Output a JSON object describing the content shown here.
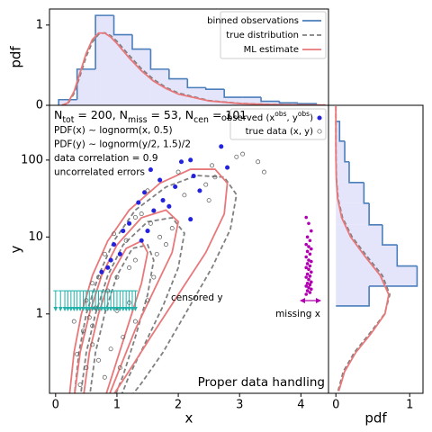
{
  "chart_data": [
    {
      "type": "histogram",
      "ylabel": "pdf",
      "xlim": [
        -0.1,
        4.45
      ],
      "ylim": [
        0,
        1.2
      ],
      "yticks": [
        0,
        1
      ],
      "legend": "upper right",
      "histogram": {
        "name": "binned observations",
        "color": "#4a7ebb",
        "fill": "#e4e4fa",
        "bins": [
          0.05,
          0.35,
          0.65,
          0.95,
          1.25,
          1.55,
          1.85,
          2.15,
          2.45,
          2.75,
          3.05,
          3.35,
          3.65,
          3.95,
          4.25
        ],
        "counts": [
          0.07,
          0.45,
          1.12,
          0.88,
          0.7,
          0.45,
          0.33,
          0.22,
          0.2,
          0.1,
          0.1,
          0.05,
          0.03,
          0.02
        ]
      },
      "series": [
        {
          "name": "true distribution",
          "color": "#808080",
          "dashed": true,
          "x": [
            0.1,
            0.2,
            0.3,
            0.4,
            0.5,
            0.6,
            0.7,
            0.8,
            0.9,
            1.0,
            1.2,
            1.4,
            1.6,
            1.8,
            2.0,
            2.5,
            3.0,
            3.5,
            4.0,
            4.4
          ],
          "values": [
            0,
            0.022,
            0.146,
            0.372,
            0.61,
            0.789,
            0.885,
            0.903,
            0.867,
            0.798,
            0.622,
            0.455,
            0.321,
            0.222,
            0.153,
            0.059,
            0.024,
            0.0099,
            0.0043,
            0.002
          ]
        },
        {
          "name": "ML estimate",
          "color": "#e8787a",
          "dashed": false,
          "x": [
            0.1,
            0.2,
            0.3,
            0.4,
            0.5,
            0.6,
            0.7,
            0.8,
            0.9,
            1.0,
            1.2,
            1.4,
            1.6,
            1.8,
            2.0,
            2.5,
            3.0,
            3.5,
            4.0,
            4.4
          ],
          "values": [
            0,
            0.03,
            0.17,
            0.41,
            0.65,
            0.82,
            0.9,
            0.9,
            0.85,
            0.77,
            0.59,
            0.43,
            0.3,
            0.21,
            0.14,
            0.055,
            0.022,
            0.009,
            0.004,
            0.002
          ]
        }
      ]
    },
    {
      "type": "scatter",
      "xlabel": "x",
      "ylabel": "y",
      "xlim": [
        -0.1,
        4.45
      ],
      "ylim": [
        0.093,
        515
      ],
      "ylog": true,
      "xticks": [
        0,
        1,
        2,
        3,
        4
      ],
      "yticks": [
        1,
        10,
        100
      ],
      "legend": "upper right",
      "stats_text": [
        {
          "text": "N"
        },
        {
          "sub": "tot"
        },
        {
          "text": " = 200, N"
        },
        {
          "sub": "miss"
        },
        {
          "text": " = 53, N"
        },
        {
          "sub": "cen"
        },
        {
          "text": " = 101"
        }
      ],
      "notes": [
        "PDF(x) ∼ lognorm(x, 0.5)",
        "PDF(y) ∼ lognorm(y/2, 1.5)/2",
        "data correlation = 0.9",
        "uncorrelated errors"
      ],
      "panel_label": "Proper data handling",
      "series": [
        {
          "name_parts": [
            {
              "text": "observed (x"
            },
            {
              "sup": "obs"
            },
            {
              "text": ", y"
            },
            {
              "sup": "obs"
            },
            {
              "text": ")"
            }
          ],
          "color": "#2323dd",
          "filled": true,
          "x": [
            2.7,
            2.2,
            2.05,
            1.55,
            2.8,
            2.25,
            1.7,
            1.95,
            2.35,
            1.45,
            1.75,
            1.85,
            1.6,
            1.35,
            1.2,
            1.1,
            0.95,
            1.5,
            0.9,
            0.85,
            1.05,
            0.75,
            1.4,
            2.2
          ],
          "values": [
            150,
            100,
            95,
            75,
            80,
            62,
            55,
            45,
            40,
            38,
            30,
            25,
            22,
            28,
            15,
            12,
            8,
            12,
            5,
            4,
            6,
            3.5,
            9,
            17
          ]
        },
        {
          "name": "true data (x, y)",
          "color": "#555555",
          "filled": false,
          "x": [
            3.05,
            3.3,
            2.95,
            2.55,
            3.4,
            2.6,
            2.45,
            2.1,
            1.5,
            1.4,
            1.3,
            1.55,
            1.15,
            0.95,
            0.8,
            0.7,
            0.6,
            1.8,
            1.65,
            1.3,
            1.2,
            1.0,
            0.5,
            0.55,
            0.45,
            0.6,
            0.7,
            0.9,
            1.1,
            1.3,
            1.5,
            0.35,
            0.5,
            0.4,
            0.8,
            1.0,
            1.2,
            0.3,
            0.65,
            1.6,
            1.9,
            2.0,
            2.5,
            1.7,
            0.85,
            0.6,
            1.05
          ],
          "values": [
            120,
            95,
            110,
            85,
            70,
            60,
            48,
            35,
            40,
            20,
            18,
            15,
            9,
            11,
            6,
            3,
            2.5,
            8,
            6,
            5,
            4,
            3,
            1.5,
            0.9,
            0.6,
            0.4,
            0.25,
            0.35,
            0.5,
            0.8,
            1.5,
            0.3,
            0.2,
            0.12,
            0.15,
            1.1,
            1.4,
            0.8,
            1.2,
            3,
            13,
            70,
            30,
            10,
            2,
            0.7,
            0.2
          ]
        }
      ],
      "censored": {
        "label": "censored y",
        "color": "#20b2aa",
        "x": [
          0,
          0.08,
          0.15,
          0.2,
          0.25,
          0.3,
          0.35,
          0.4,
          0.45,
          0.5,
          0.55,
          0.6,
          0.65,
          0.7,
          0.75,
          0.8,
          0.85,
          0.9,
          0.95,
          1.0,
          1.05,
          1.1,
          1.15,
          1.2,
          1.25,
          1.3
        ],
        "values": [
          2,
          2,
          2,
          2,
          2,
          2,
          2,
          2,
          2,
          2,
          2,
          2,
          2,
          2,
          2,
          2,
          2,
          2,
          2,
          2,
          2,
          2,
          2,
          2,
          2,
          2
        ]
      },
      "missing": {
        "label": "missing x",
        "color": "#b000b0",
        "values": [
          18,
          15,
          12,
          10,
          9,
          8,
          7.5,
          7,
          6.5,
          6,
          5.5,
          5,
          4.8,
          4.5,
          4.2,
          4,
          3.8,
          3.5,
          3.3,
          3.1,
          3,
          2.8,
          2.6,
          2.5,
          2.4,
          2.3,
          2.2,
          2.1,
          2,
          1.9,
          1.8
        ]
      },
      "contours": [
        {
          "color": "#808080",
          "dashed": true,
          "x": [
            0.3,
            0.38,
            0.5,
            0.7,
            0.95,
            1.3,
            1.8,
            2.3,
            2.75,
            2.95,
            2.85,
            2.55,
            2.15,
            1.75,
            1.4,
            1.2
          ],
          "y": [
            0.079,
            0.316,
            1,
            3.16,
            8.9,
            22.4,
            44.7,
            63,
            60,
            35.5,
            12.6,
            4,
            1.12,
            0.316,
            0.126,
            0.079
          ]
        },
        {
          "color": "#808080",
          "dashed": true,
          "x": [
            0.4,
            0.5,
            0.65,
            0.85,
            1.1,
            1.5,
            1.9,
            2.1,
            2.0,
            1.75,
            1.45,
            1.2,
            1.05
          ],
          "y": [
            0.079,
            0.316,
            1,
            3.16,
            7.9,
            15.8,
            17.8,
            11.2,
            4,
            1.26,
            0.4,
            0.158,
            0.079
          ]
        },
        {
          "color": "#808080",
          "dashed": true,
          "x": [
            0.55,
            0.65,
            0.8,
            1.0,
            1.25,
            1.5,
            1.6,
            1.5,
            1.3,
            1.1,
            0.95
          ],
          "y": [
            0.079,
            0.316,
            1,
            3.16,
            7.1,
            7.9,
            5,
            1.78,
            0.5,
            0.158,
            0.079
          ]
        },
        {
          "color": "#e8787a",
          "dashed": false,
          "x": [
            0.22,
            0.3,
            0.42,
            0.6,
            0.85,
            1.2,
            1.7,
            2.2,
            2.6,
            2.8,
            2.75,
            2.45,
            2.0,
            1.55,
            1.15,
            0.9
          ],
          "y": [
            0.079,
            0.316,
            1,
            3.16,
            8.9,
            22.4,
            50,
            76,
            76,
            50,
            20,
            6.3,
            1.78,
            0.5,
            0.158,
            0.079
          ]
        },
        {
          "color": "#e8787a",
          "dashed": false,
          "x": [
            0.3,
            0.4,
            0.55,
            0.75,
            1.0,
            1.4,
            1.8,
            2.0,
            1.9,
            1.6,
            1.3,
            1.05,
            0.85
          ],
          "y": [
            0.079,
            0.316,
            1,
            3.16,
            7.9,
            17.8,
            22.4,
            15.8,
            6.3,
            2,
            0.63,
            0.2,
            0.079
          ]
        },
        {
          "color": "#e8787a",
          "dashed": false,
          "x": [
            0.45,
            0.55,
            0.7,
            0.9,
            1.15,
            1.4,
            1.5,
            1.4,
            1.2,
            1.0,
            0.8
          ],
          "y": [
            0.079,
            0.316,
            1,
            3.16,
            7.1,
            8.9,
            6.3,
            2.5,
            0.79,
            0.25,
            0.079
          ]
        }
      ]
    },
    {
      "type": "histogram",
      "orientation": "horizontal",
      "xlabel": "pdf",
      "xlim": [
        -0.1,
        1.18
      ],
      "xticks": [
        0,
        1
      ],
      "ylim": [
        0.093,
        515
      ],
      "ylog": true,
      "histogram": {
        "color": "#4a7ebb",
        "fill": "#e4e4fa",
        "bins": [
          1.27,
          2.3,
          4.2,
          7.9,
          14.4,
          27.5,
          51,
          95,
          176,
          318
        ],
        "counts": [
          0.45,
          1.1,
          0.83,
          0.63,
          0.45,
          0.38,
          0.18,
          0.12,
          0.05
        ]
      },
      "series": [
        {
          "color": "#808080",
          "dashed": true,
          "y": [
            0.1,
            0.178,
            0.316,
            0.562,
            1,
            1.78,
            3.16,
            5.62,
            10,
            17.8,
            31.6,
            56.2,
            100,
            178,
            316,
            501
          ],
          "values": [
            0.03,
            0.1,
            0.25,
            0.46,
            0.66,
            0.73,
            0.63,
            0.42,
            0.22,
            0.09,
            0.03,
            0.008,
            0.002,
            0,
            0,
            0
          ]
        },
        {
          "color": "#e8787a",
          "dashed": false,
          "y": [
            0.1,
            0.178,
            0.316,
            0.562,
            1,
            1.78,
            3.16,
            5.62,
            10,
            17.8,
            31.6,
            56.2,
            100,
            178,
            316,
            501
          ],
          "values": [
            0.04,
            0.118,
            0.27,
            0.48,
            0.665,
            0.716,
            0.601,
            0.393,
            0.2,
            0.079,
            0.024,
            0.006,
            0.001,
            0,
            0,
            0
          ]
        }
      ]
    }
  ]
}
